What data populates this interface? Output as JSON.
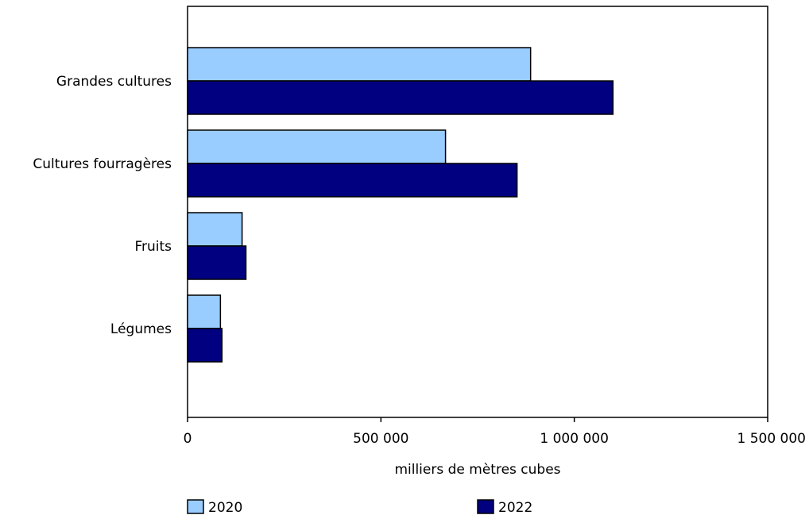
{
  "chart_data": {
    "type": "bar",
    "orientation": "horizontal",
    "title": "",
    "xlabel": "milliers de mètres cubes",
    "ylabel": "",
    "xlim": [
      0,
      1500000
    ],
    "xticks": [
      0,
      500000,
      1000000,
      1500000
    ],
    "xtick_labels": [
      "0",
      "500 000",
      "1 000 000",
      "1 500 000"
    ],
    "categories": [
      "Grandes cultures",
      "Cultures fourragères",
      "Fruits",
      "Légumes"
    ],
    "series": [
      {
        "name": "2020",
        "color": "#99ccff",
        "values": [
          887000,
          667000,
          141000,
          85000
        ]
      },
      {
        "name": "2022",
        "color": "#000080",
        "values": [
          1100000,
          852000,
          151000,
          89000
        ]
      }
    ],
    "grid": false,
    "legend": "bottom"
  }
}
